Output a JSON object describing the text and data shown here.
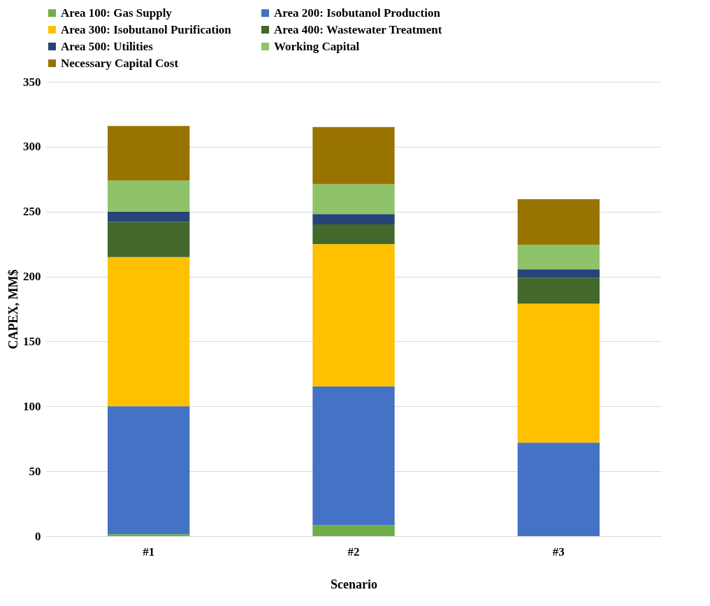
{
  "chart_data": {
    "type": "bar",
    "stacked": true,
    "xlabel": "Scenario",
    "ylabel": "CAPEX, MM$",
    "categories": [
      "#1",
      "#2",
      "#3"
    ],
    "series": [
      {
        "name": "Area 100: Gas Supply",
        "color": "#70ad47",
        "values": [
          1.5,
          8.4,
          0
        ]
      },
      {
        "name": "Area 200: Isobutanol Production",
        "color": "#4472c4",
        "values": [
          98.5,
          107,
          72
        ]
      },
      {
        "name": "Area 300: Isobutanol Purification",
        "color": "#ffc000",
        "values": [
          115,
          109.5,
          107
        ]
      },
      {
        "name": "Area 400: Wastewater Treatment",
        "color": "#43682b",
        "values": [
          27,
          15.2,
          20
        ]
      },
      {
        "name": "Area 500: Utilities",
        "color": "#264478",
        "values": [
          8,
          8,
          6.5
        ]
      },
      {
        "name": "Working Capital",
        "color": "#8fc36a",
        "values": [
          24,
          23,
          19
        ]
      },
      {
        "name": "Necessary Capital Cost",
        "color": "#997300",
        "values": [
          42,
          44,
          35
        ]
      }
    ],
    "ylim": [
      0,
      350
    ],
    "yticks": [
      0,
      50,
      100,
      150,
      200,
      250,
      300,
      350
    ],
    "grid": "y",
    "legend": "top"
  }
}
